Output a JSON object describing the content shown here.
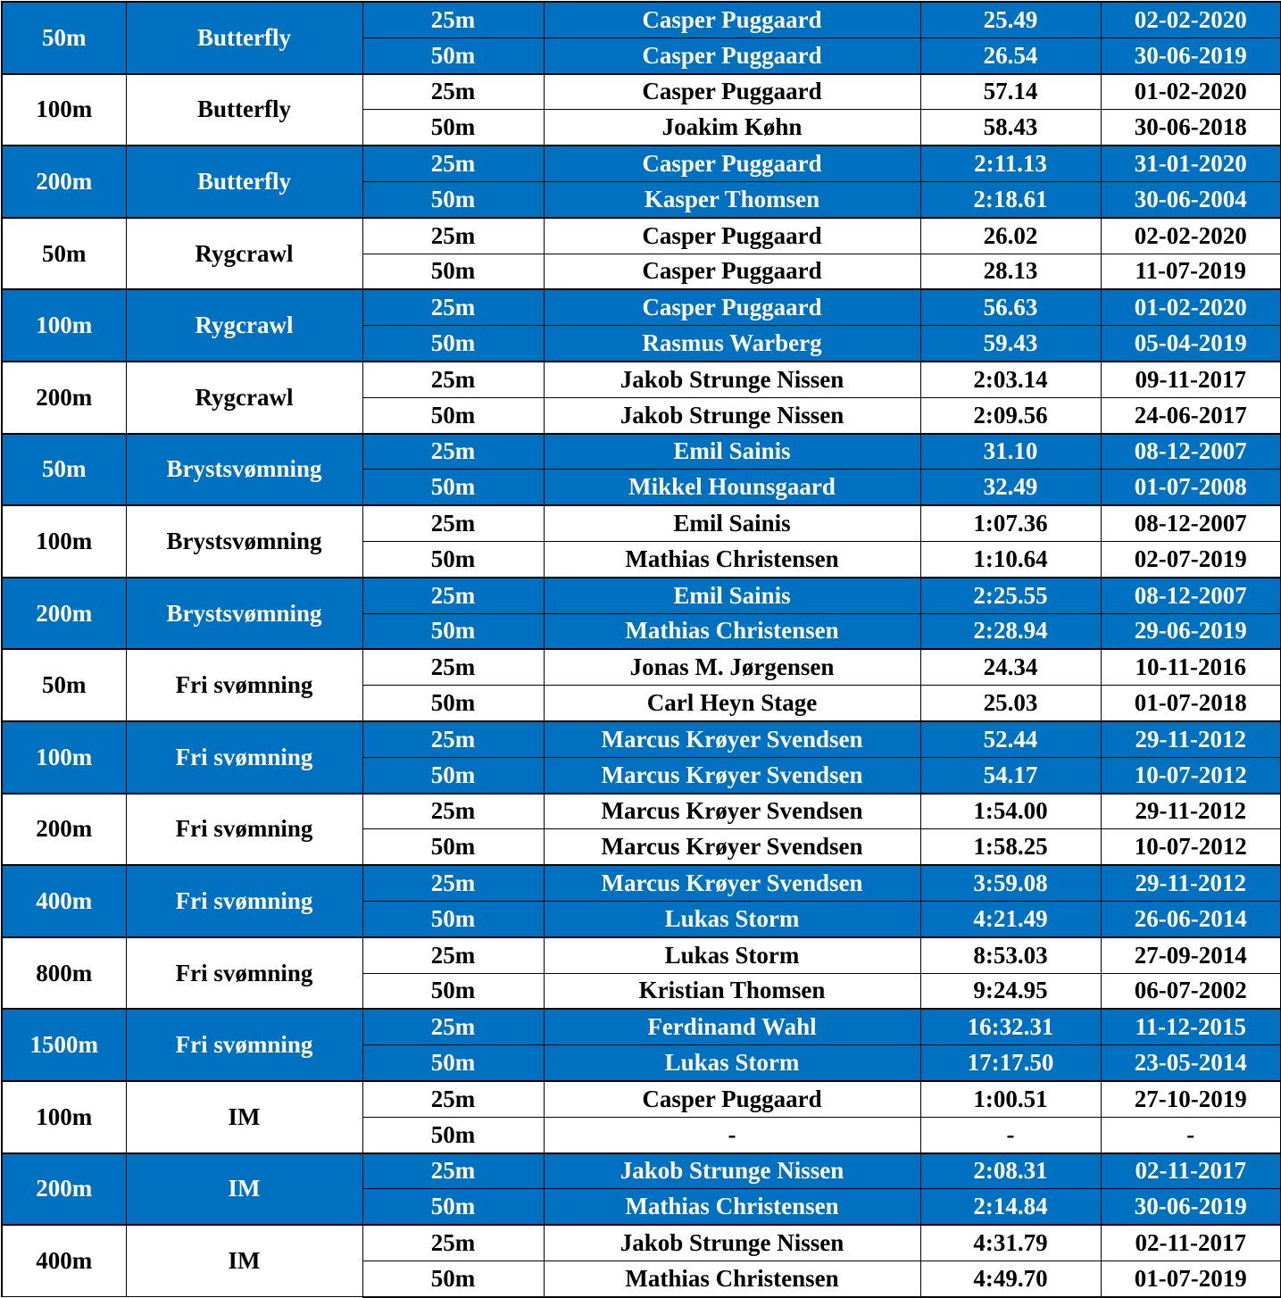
{
  "colors": {
    "blue_band": "#0070c0",
    "white_band": "#ffffff",
    "blue_text": "#ffffff",
    "white_text": "#000000"
  },
  "events": [
    {
      "distance": "50m",
      "stroke": "Butterfly",
      "band": "blue",
      "rows": [
        {
          "pool": "25m",
          "name": "Casper Puggaard",
          "time": "25.49",
          "date": "02-02-2020"
        },
        {
          "pool": "50m",
          "name": "Casper Puggaard",
          "time": "26.54",
          "date": "30-06-2019"
        }
      ]
    },
    {
      "distance": "100m",
      "stroke": "Butterfly",
      "band": "white",
      "rows": [
        {
          "pool": "25m",
          "name": "Casper Puggaard",
          "time": "57.14",
          "date": "01-02-2020"
        },
        {
          "pool": "50m",
          "name": "Joakim Køhn",
          "time": "58.43",
          "date": "30-06-2018"
        }
      ]
    },
    {
      "distance": "200m",
      "stroke": "Butterfly",
      "band": "blue",
      "rows": [
        {
          "pool": "25m",
          "name": "Casper Puggaard",
          "time": "2:11.13",
          "date": "31-01-2020"
        },
        {
          "pool": "50m",
          "name": "Kasper Thomsen",
          "time": "2:18.61",
          "date": "30-06-2004"
        }
      ]
    },
    {
      "distance": "50m",
      "stroke": "Rygcrawl",
      "band": "white",
      "rows": [
        {
          "pool": "25m",
          "name": "Casper Puggaard",
          "time": "26.02",
          "date": "02-02-2020"
        },
        {
          "pool": "50m",
          "name": "Casper Puggaard",
          "time": "28.13",
          "date": "11-07-2019"
        }
      ]
    },
    {
      "distance": "100m",
      "stroke": "Rygcrawl",
      "band": "blue",
      "rows": [
        {
          "pool": "25m",
          "name": "Casper Puggaard",
          "time": "56.63",
          "date": "01-02-2020"
        },
        {
          "pool": "50m",
          "name": "Rasmus Warberg",
          "time": "59.43",
          "date": "05-04-2019"
        }
      ]
    },
    {
      "distance": "200m",
      "stroke": "Rygcrawl",
      "band": "white",
      "rows": [
        {
          "pool": "25m",
          "name": "Jakob Strunge Nissen",
          "time": "2:03.14",
          "date": "09-11-2017"
        },
        {
          "pool": "50m",
          "name": "Jakob Strunge Nissen",
          "time": "2:09.56",
          "date": "24-06-2017"
        }
      ]
    },
    {
      "distance": "50m",
      "stroke": "Brystsvømning",
      "band": "blue",
      "rows": [
        {
          "pool": "25m",
          "name": "Emil Sainis",
          "time": "31.10",
          "date": "08-12-2007"
        },
        {
          "pool": "50m",
          "name": "Mikkel Hounsgaard",
          "time": "32.49",
          "date": "01-07-2008"
        }
      ]
    },
    {
      "distance": "100m",
      "stroke": "Brystsvømning",
      "band": "white",
      "rows": [
        {
          "pool": "25m",
          "name": "Emil Sainis",
          "time": "1:07.36",
          "date": "08-12-2007"
        },
        {
          "pool": "50m",
          "name": "Mathias Christensen",
          "time": "1:10.64",
          "date": "02-07-2019"
        }
      ]
    },
    {
      "distance": "200m",
      "stroke": "Brystsvømning",
      "band": "blue",
      "rows": [
        {
          "pool": "25m",
          "name": "Emil Sainis",
          "time": "2:25.55",
          "date": "08-12-2007"
        },
        {
          "pool": "50m",
          "name": "Mathias Christensen",
          "time": "2:28.94",
          "date": "29-06-2019"
        }
      ]
    },
    {
      "distance": "50m",
      "stroke": "Fri svømning",
      "band": "white",
      "rows": [
        {
          "pool": "25m",
          "name": "Jonas M. Jørgensen",
          "time": "24.34",
          "date": "10-11-2016"
        },
        {
          "pool": "50m",
          "name": "Carl Heyn Stage",
          "time": "25.03",
          "date": "01-07-2018"
        }
      ]
    },
    {
      "distance": "100m",
      "stroke": "Fri svømning",
      "band": "blue",
      "rows": [
        {
          "pool": "25m",
          "name": "Marcus Krøyer Svendsen",
          "time": "52.44",
          "date": "29-11-2012"
        },
        {
          "pool": "50m",
          "name": "Marcus Krøyer Svendsen",
          "time": "54.17",
          "date": "10-07-2012"
        }
      ]
    },
    {
      "distance": "200m",
      "stroke": "Fri svømning",
      "band": "white",
      "rows": [
        {
          "pool": "25m",
          "name": "Marcus Krøyer Svendsen",
          "time": "1:54.00",
          "date": "29-11-2012"
        },
        {
          "pool": "50m",
          "name": "Marcus Krøyer Svendsen",
          "time": "1:58.25",
          "date": "10-07-2012"
        }
      ]
    },
    {
      "distance": "400m",
      "stroke": "Fri svømning",
      "band": "blue",
      "rows": [
        {
          "pool": "25m",
          "name": "Marcus Krøyer Svendsen",
          "time": "3:59.08",
          "date": "29-11-2012"
        },
        {
          "pool": "50m",
          "name": "Lukas Storm",
          "time": "4:21.49",
          "date": "26-06-2014"
        }
      ]
    },
    {
      "distance": "800m",
      "stroke": "Fri svømning",
      "band": "white",
      "rows": [
        {
          "pool": "25m",
          "name": "Lukas Storm",
          "time": "8:53.03",
          "date": "27-09-2014"
        },
        {
          "pool": "50m",
          "name": "Kristian Thomsen",
          "time": "9:24.95",
          "date": "06-07-2002"
        }
      ]
    },
    {
      "distance": "1500m",
      "stroke": "Fri svømning",
      "band": "blue",
      "rows": [
        {
          "pool": "25m",
          "name": "Ferdinand Wahl",
          "time": "16:32.31",
          "date": "11-12-2015"
        },
        {
          "pool": "50m",
          "name": "Lukas Storm",
          "time": "17:17.50",
          "date": "23-05-2014"
        }
      ]
    },
    {
      "distance": "100m",
      "stroke": "IM",
      "band": "white",
      "rows": [
        {
          "pool": "25m",
          "name": "Casper Puggaard",
          "time": "1:00.51",
          "date": "27-10-2019"
        },
        {
          "pool": "50m",
          "name": "-",
          "time": "-",
          "date": "-"
        }
      ]
    },
    {
      "distance": "200m",
      "stroke": "IM",
      "band": "blue",
      "rows": [
        {
          "pool": "25m",
          "name": "Jakob Strunge Nissen",
          "time": "2:08.31",
          "date": "02-11-2017"
        },
        {
          "pool": "50m",
          "name": "Mathias Christensen",
          "time": "2:14.84",
          "date": "30-06-2019"
        }
      ]
    },
    {
      "distance": "400m",
      "stroke": "IM",
      "band": "white",
      "rows": [
        {
          "pool": "25m",
          "name": "Jakob Strunge Nissen",
          "time": "4:31.79",
          "date": "02-11-2017"
        },
        {
          "pool": "50m",
          "name": "Mathias Christensen",
          "time": "4:49.70",
          "date": "01-07-2019"
        }
      ]
    }
  ]
}
